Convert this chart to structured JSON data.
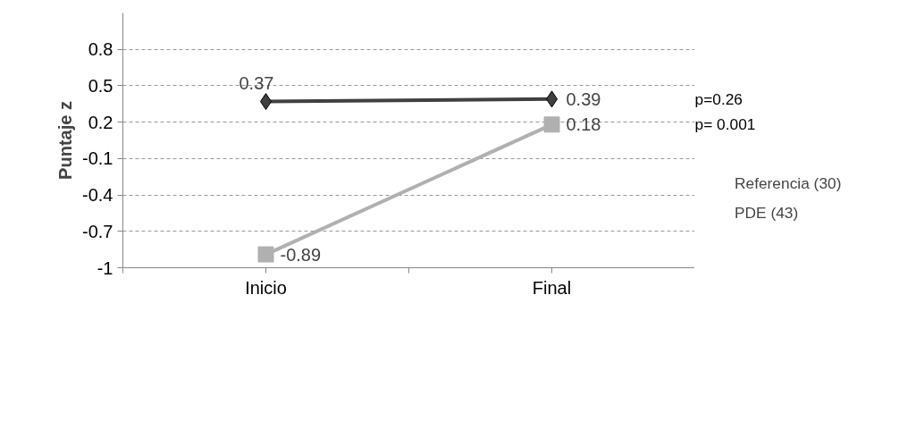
{
  "chart_data": {
    "type": "line",
    "ylabel": "Puntaje z",
    "categories": [
      "Inicio",
      "Final"
    ],
    "series": [
      {
        "name": "Referencia (30)",
        "color": "#404040",
        "marker": "diamond",
        "values": [
          0.37,
          0.39
        ]
      },
      {
        "name": "PDE (43)",
        "color": "#b0b0b0",
        "marker": "square",
        "values": [
          -0.89,
          0.18
        ]
      }
    ],
    "ylim": [
      -1,
      1.1
    ],
    "yticks": [
      -1,
      -0.7,
      -0.4,
      -0.1,
      0.2,
      0.5,
      0.8
    ],
    "grid": "y",
    "legend": "right",
    "data_labels": true,
    "annotations": [
      "p=0.26",
      "p= 0.001"
    ]
  }
}
